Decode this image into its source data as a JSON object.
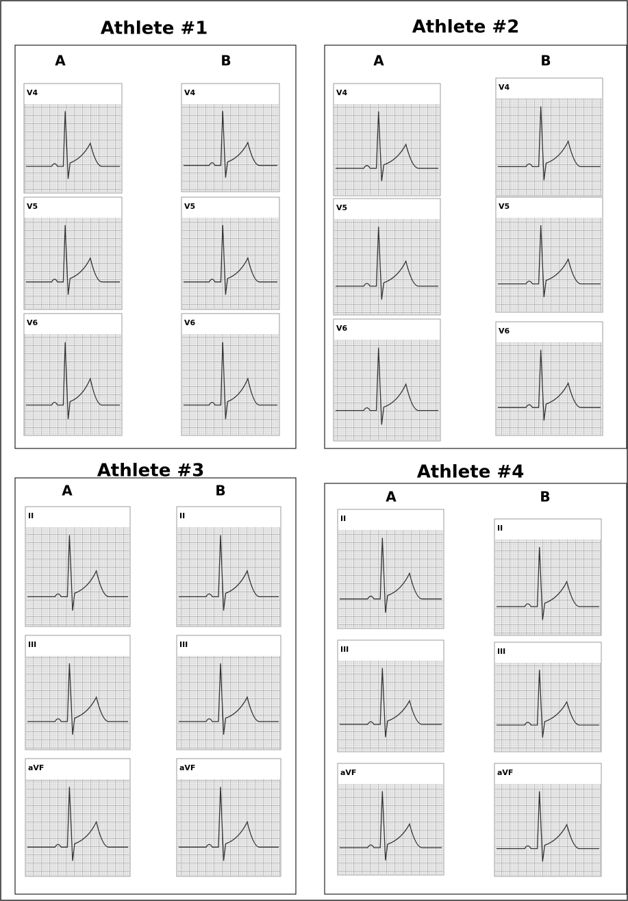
{
  "panels": [
    {
      "title": "Athlete #1",
      "columns": [
        {
          "label": "A",
          "leads": [
            "V4",
            "V5",
            "V6"
          ]
        },
        {
          "label": "B",
          "leads": [
            "V4",
            "V5",
            "V6"
          ]
        }
      ]
    },
    {
      "title": "Athlete #2",
      "columns": [
        {
          "label": "A",
          "leads": [
            "V4",
            "V5",
            "V6"
          ]
        },
        {
          "label": "B",
          "leads": [
            "V4",
            "V5",
            "V6"
          ]
        }
      ]
    },
    {
      "title": "Athlete #3",
      "columns": [
        {
          "label": "A",
          "leads": [
            "II",
            "III",
            "aVF"
          ]
        },
        {
          "label": "B",
          "leads": [
            "II",
            "III",
            "aVF"
          ]
        }
      ]
    },
    {
      "title": "Athlete #4",
      "columns": [
        {
          "label": "A",
          "leads": [
            "II",
            "III",
            "aVF"
          ]
        },
        {
          "label": "B",
          "leads": [
            "II",
            "III",
            "aVF"
          ]
        }
      ]
    }
  ]
}
